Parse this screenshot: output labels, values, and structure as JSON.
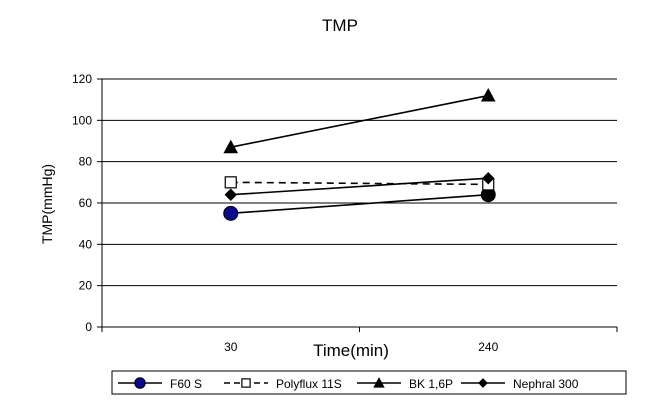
{
  "chart_data": {
    "type": "line",
    "title": "TMP",
    "xlabel": "Time(min)",
    "ylabel": "TMP(mmHg)",
    "categories": [
      "30",
      "240"
    ],
    "ylim": [
      0,
      120
    ],
    "yticks": [
      0,
      20,
      40,
      60,
      80,
      100,
      120
    ],
    "grid": true,
    "legend_position": "bottom",
    "series": [
      {
        "name": "F60 S",
        "values": [
          55,
          64
        ],
        "marker": "circle",
        "line_style": "solid",
        "line_color": "#000000",
        "marker_colors": [
          "#0a0a8c",
          "#000000"
        ]
      },
      {
        "name": "Polyflux 11S",
        "values": [
          70,
          69
        ],
        "marker": "square-open",
        "line_style": "dashed",
        "line_color": "#000000",
        "marker_colors": [
          "#000000",
          "#000000"
        ]
      },
      {
        "name": "BK 1,6P",
        "values": [
          87,
          112
        ],
        "marker": "triangle",
        "line_style": "solid",
        "line_color": "#000000",
        "marker_colors": [
          "#000000",
          "#000000"
        ]
      },
      {
        "name": "Nephral 300",
        "values": [
          64,
          72
        ],
        "marker": "diamond",
        "line_style": "solid",
        "line_color": "#000000",
        "marker_colors": [
          "#000000",
          "#000000"
        ]
      }
    ]
  }
}
